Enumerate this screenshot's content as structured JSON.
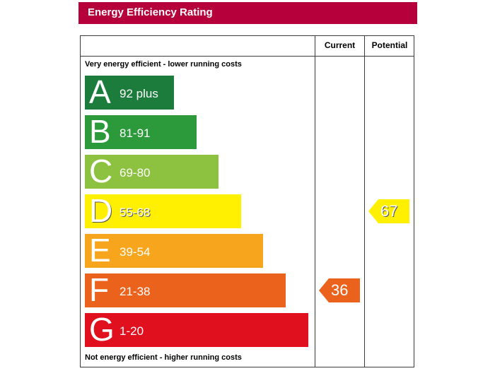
{
  "header": {
    "title": "Energy Efficiency Rating"
  },
  "columns": {
    "current": "Current",
    "potential": "Potential"
  },
  "notes": {
    "top": "Very energy efficient - lower running costs",
    "bottom": "Not energy efficient - higher running costs"
  },
  "colors": {
    "header": "#b5003b",
    "A": "#1b7c3c",
    "B": "#2c9a3b",
    "C": "#8cc23f",
    "D": "#ffef00",
    "E": "#f7a51c",
    "F": "#eb621d",
    "G": "#e0101f"
  },
  "chart_data": {
    "type": "bar",
    "categories": [
      "A",
      "B",
      "C",
      "D",
      "E",
      "F",
      "G"
    ],
    "ranges": [
      "92 plus",
      "81-91",
      "69-80",
      "55-68",
      "39-54",
      "21-38",
      "1-20"
    ],
    "current": {
      "value": "36",
      "band": "F"
    },
    "potential": {
      "value": "67",
      "band": "D"
    }
  }
}
